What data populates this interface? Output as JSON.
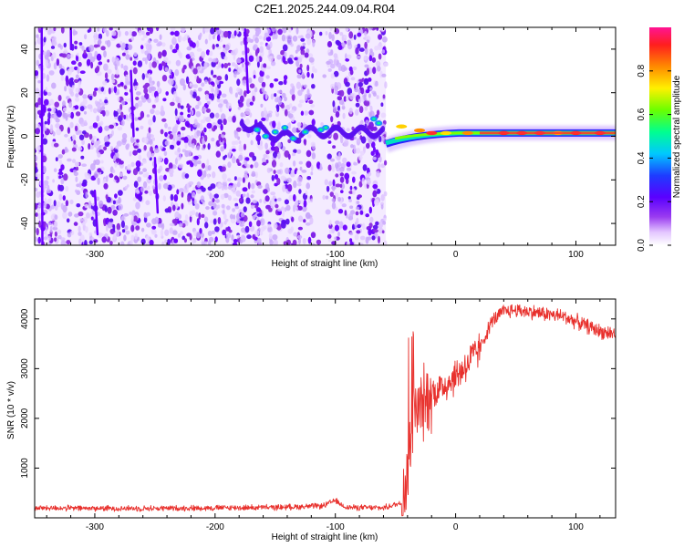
{
  "title": "C2E1.2025.244.09.04.R04",
  "chart_data": [
    {
      "type": "heatmap",
      "name": "spectrogram",
      "title": "C2E1.2025.244.09.04.R04",
      "xlabel": "Height of straight line (km)",
      "ylabel": "Frequency (Hz)",
      "xlim": [
        -350,
        133
      ],
      "ylim": [
        -50,
        50
      ],
      "xticks": [
        -300,
        -200,
        -100,
        0,
        100
      ],
      "yticks": [
        -40,
        -20,
        0,
        20,
        40
      ],
      "xtick_labels": [
        "-300",
        "-200",
        "-100",
        "0",
        "100"
      ],
      "ytick_labels": [
        "-40",
        "-20",
        "0",
        "20",
        "40"
      ],
      "colorbar": {
        "label": "Normalized spectral amplitude",
        "range": [
          0.0,
          1.0
        ],
        "ticks": [
          0.0,
          0.2,
          0.4,
          0.6,
          0.8
        ],
        "tick_labels": [
          "0.0",
          "0.2",
          "0.4",
          "0.6",
          "0.8"
        ],
        "colormap": [
          "#ffffff",
          "#e6c9ff",
          "#8a2be2",
          "#6a00ff",
          "#2020ff",
          "#00bfff",
          "#00ff7f",
          "#7cff00",
          "#ffff00",
          "#ff8c00",
          "#ff2020",
          "#ff1493"
        ]
      },
      "features": {
        "noise_region_x": [
          -350,
          -58
        ],
        "noise_gap_x": [
          -118,
          -105
        ],
        "carrier_start_x": -58,
        "carrier_end_x": 133,
        "carrier_frequency": 1.5,
        "carrier_peak_amplitude": 0.9
      }
    },
    {
      "type": "line",
      "name": "snr",
      "xlabel": "Height of straight line (km)",
      "ylabel": "SNR (10 * v/v)",
      "xlim": [
        -350,
        133
      ],
      "ylim": [
        0,
        4400
      ],
      "xticks": [
        -300,
        -200,
        -100,
        0,
        100
      ],
      "yticks": [
        1000,
        2000,
        3000,
        4000
      ],
      "xtick_labels": [
        "-300",
        "-200",
        "-100",
        "0",
        "100"
      ],
      "ytick_labels": [
        "1000",
        "2000",
        "3000",
        "4000"
      ],
      "color": "#e8302c",
      "series": [
        {
          "name": "SNR",
          "x": [
            -350,
            -300,
            -250,
            -200,
            -150,
            -110,
            -100,
            -95,
            -90,
            -60,
            -45,
            -40,
            -35,
            -30,
            -20,
            -10,
            0,
            10,
            20,
            30,
            40,
            50,
            60,
            70,
            80,
            90,
            100,
            110,
            120,
            133
          ],
          "y": [
            200,
            190,
            190,
            200,
            210,
            240,
            350,
            260,
            210,
            200,
            300,
            1000,
            2000,
            2200,
            2500,
            2650,
            2850,
            3100,
            3400,
            3950,
            4150,
            4180,
            4150,
            4120,
            4080,
            4050,
            3950,
            3850,
            3750,
            3700
          ]
        }
      ]
    }
  ]
}
